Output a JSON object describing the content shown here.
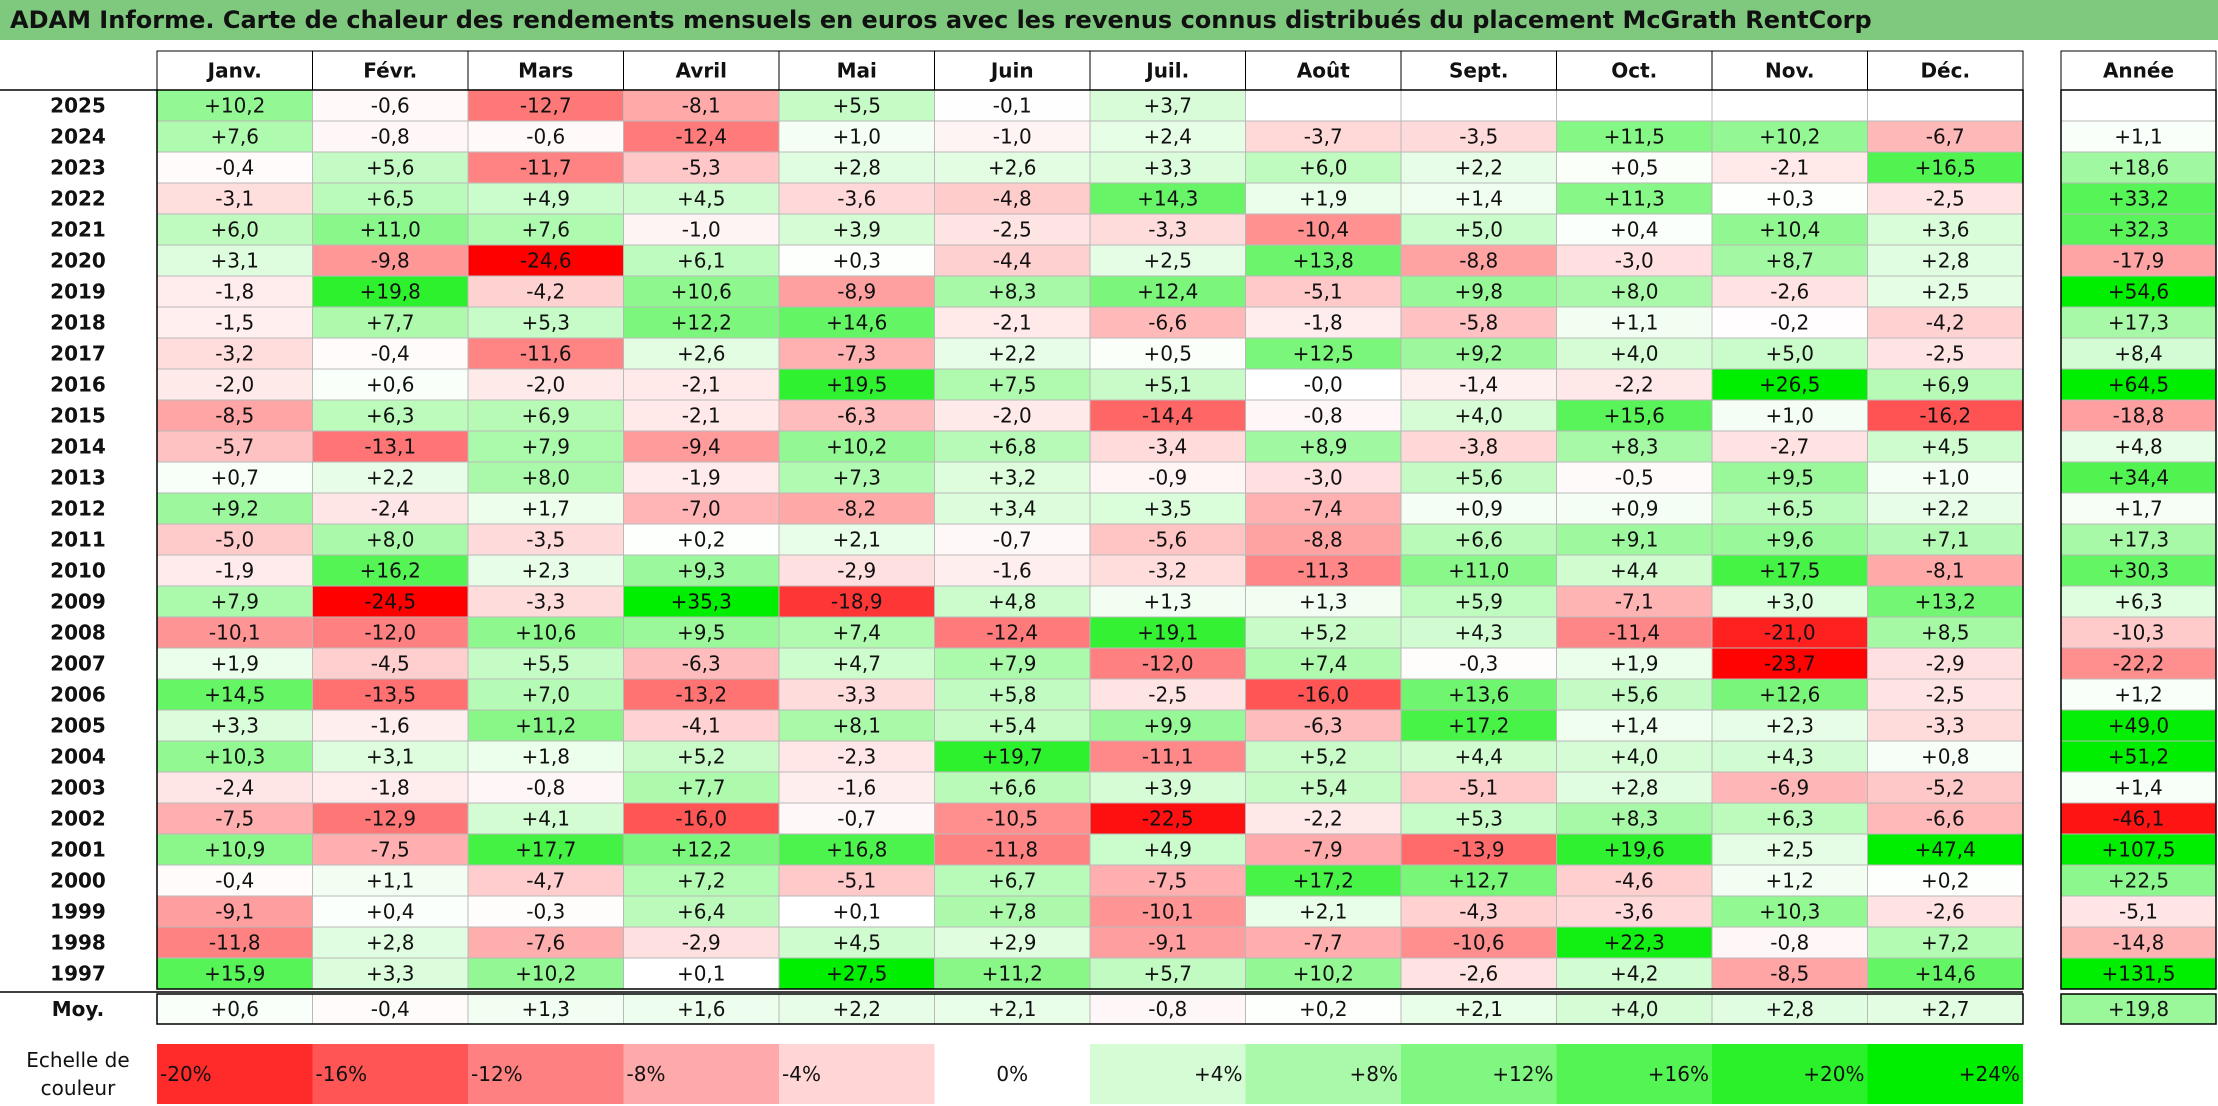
{
  "title": "ADAM Informe. Carte de chaleur des rendements mensuels en euros avec les revenus connus distribués du placement McGrath RentCorp",
  "chart_data": {
    "type": "heatmap",
    "title": "ADAM Informe. Carte de chaleur des rendements mensuels en euros avec les revenus connus distribués du placement McGrath RentCorp",
    "columns": [
      "Janv.",
      "Févr.",
      "Mars",
      "Avril",
      "Mai",
      "Juin",
      "Juil.",
      "Août",
      "Sept.",
      "Oct.",
      "Nov.",
      "Déc."
    ],
    "year_column_label": "Année",
    "rows": [
      {
        "year": "2025",
        "values": [
          "+10,2",
          "-0,6",
          "-12,7",
          "-8,1",
          "+5,5",
          "-0,1",
          "+3,7",
          "",
          "",
          "",
          "",
          ""
        ],
        "annual": ""
      },
      {
        "year": "2024",
        "values": [
          "+7,6",
          "-0,8",
          "-0,6",
          "-12,4",
          "+1,0",
          "-1,0",
          "+2,4",
          "-3,7",
          "-3,5",
          "+11,5",
          "+10,2",
          "-6,7"
        ],
        "annual": "+1,1"
      },
      {
        "year": "2023",
        "values": [
          "-0,4",
          "+5,6",
          "-11,7",
          "-5,3",
          "+2,8",
          "+2,6",
          "+3,3",
          "+6,0",
          "+2,2",
          "+0,5",
          "-2,1",
          "+16,5"
        ],
        "annual": "+18,6"
      },
      {
        "year": "2022",
        "values": [
          "-3,1",
          "+6,5",
          "+4,9",
          "+4,5",
          "-3,6",
          "-4,8",
          "+14,3",
          "+1,9",
          "+1,4",
          "+11,3",
          "+0,3",
          "-2,5"
        ],
        "annual": "+33,2"
      },
      {
        "year": "2021",
        "values": [
          "+6,0",
          "+11,0",
          "+7,6",
          "-1,0",
          "+3,9",
          "-2,5",
          "-3,3",
          "-10,4",
          "+5,0",
          "+0,4",
          "+10,4",
          "+3,6"
        ],
        "annual": "+32,3"
      },
      {
        "year": "2020",
        "values": [
          "+3,1",
          "-9,8",
          "-24,6",
          "+6,1",
          "+0,3",
          "-4,4",
          "+2,5",
          "+13,8",
          "-8,8",
          "-3,0",
          "+8,7",
          "+2,8"
        ],
        "annual": "-17,9"
      },
      {
        "year": "2019",
        "values": [
          "-1,8",
          "+19,8",
          "-4,2",
          "+10,6",
          "-8,9",
          "+8,3",
          "+12,4",
          "-5,1",
          "+9,8",
          "+8,0",
          "-2,6",
          "+2,5"
        ],
        "annual": "+54,6"
      },
      {
        "year": "2018",
        "values": [
          "-1,5",
          "+7,7",
          "+5,3",
          "+12,2",
          "+14,6",
          "-2,1",
          "-6,6",
          "-1,8",
          "-5,8",
          "+1,1",
          "-0,2",
          "-4,2"
        ],
        "annual": "+17,3"
      },
      {
        "year": "2017",
        "values": [
          "-3,2",
          "-0,4",
          "-11,6",
          "+2,6",
          "-7,3",
          "+2,2",
          "+0,5",
          "+12,5",
          "+9,2",
          "+4,0",
          "+5,0",
          "-2,5"
        ],
        "annual": "+8,4"
      },
      {
        "year": "2016",
        "values": [
          "-2,0",
          "+0,6",
          "-2,0",
          "-2,1",
          "+19,5",
          "+7,5",
          "+5,1",
          "-0,0",
          "-1,4",
          "-2,2",
          "+26,5",
          "+6,9"
        ],
        "annual": "+64,5"
      },
      {
        "year": "2015",
        "values": [
          "-8,5",
          "+6,3",
          "+6,9",
          "-2,1",
          "-6,3",
          "-2,0",
          "-14,4",
          "-0,8",
          "+4,0",
          "+15,6",
          "+1,0",
          "-16,2"
        ],
        "annual": "-18,8"
      },
      {
        "year": "2014",
        "values": [
          "-5,7",
          "-13,1",
          "+7,9",
          "-9,4",
          "+10,2",
          "+6,8",
          "-3,4",
          "+8,9",
          "-3,8",
          "+8,3",
          "-2,7",
          "+4,5"
        ],
        "annual": "+4,8"
      },
      {
        "year": "2013",
        "values": [
          "+0,7",
          "+2,2",
          "+8,0",
          "-1,9",
          "+7,3",
          "+3,2",
          "-0,9",
          "-3,0",
          "+5,6",
          "-0,5",
          "+9,5",
          "+1,0"
        ],
        "annual": "+34,4"
      },
      {
        "year": "2012",
        "values": [
          "+9,2",
          "-2,4",
          "+1,7",
          "-7,0",
          "-8,2",
          "+3,4",
          "+3,5",
          "-7,4",
          "+0,9",
          "+0,9",
          "+6,5",
          "+2,2"
        ],
        "annual": "+1,7"
      },
      {
        "year": "2011",
        "values": [
          "-5,0",
          "+8,0",
          "-3,5",
          "+0,2",
          "+2,1",
          "-0,7",
          "-5,6",
          "-8,8",
          "+6,6",
          "+9,1",
          "+9,6",
          "+7,1"
        ],
        "annual": "+17,3"
      },
      {
        "year": "2010",
        "values": [
          "-1,9",
          "+16,2",
          "+2,3",
          "+9,3",
          "-2,9",
          "-1,6",
          "-3,2",
          "-11,3",
          "+11,0",
          "+4,4",
          "+17,5",
          "-8,1"
        ],
        "annual": "+30,3"
      },
      {
        "year": "2009",
        "values": [
          "+7,9",
          "-24,5",
          "-3,3",
          "+35,3",
          "-18,9",
          "+4,8",
          "+1,3",
          "+1,3",
          "+5,9",
          "-7,1",
          "+3,0",
          "+13,2"
        ],
        "annual": "+6,3"
      },
      {
        "year": "2008",
        "values": [
          "-10,1",
          "-12,0",
          "+10,6",
          "+9,5",
          "+7,4",
          "-12,4",
          "+19,1",
          "+5,2",
          "+4,3",
          "-11,4",
          "-21,0",
          "+8,5"
        ],
        "annual": "-10,3"
      },
      {
        "year": "2007",
        "values": [
          "+1,9",
          "-4,5",
          "+5,5",
          "-6,3",
          "+4,7",
          "+7,9",
          "-12,0",
          "+7,4",
          "-0,3",
          "+1,9",
          "-23,7",
          "-2,9"
        ],
        "annual": "-22,2"
      },
      {
        "year": "2006",
        "values": [
          "+14,5",
          "-13,5",
          "+7,0",
          "-13,2",
          "-3,3",
          "+5,8",
          "-2,5",
          "-16,0",
          "+13,6",
          "+5,6",
          "+12,6",
          "-2,5"
        ],
        "annual": "+1,2"
      },
      {
        "year": "2005",
        "values": [
          "+3,3",
          "-1,6",
          "+11,2",
          "-4,1",
          "+8,1",
          "+5,4",
          "+9,9",
          "-6,3",
          "+17,2",
          "+1,4",
          "+2,3",
          "-3,3"
        ],
        "annual": "+49,0"
      },
      {
        "year": "2004",
        "values": [
          "+10,3",
          "+3,1",
          "+1,8",
          "+5,2",
          "-2,3",
          "+19,7",
          "-11,1",
          "+5,2",
          "+4,4",
          "+4,0",
          "+4,3",
          "+0,8"
        ],
        "annual": "+51,2"
      },
      {
        "year": "2003",
        "values": [
          "-2,4",
          "-1,8",
          "-0,8",
          "+7,7",
          "-1,6",
          "+6,6",
          "+3,9",
          "+5,4",
          "-5,1",
          "+2,8",
          "-6,9",
          "-5,2"
        ],
        "annual": "+1,4"
      },
      {
        "year": "2002",
        "values": [
          "-7,5",
          "-12,9",
          "+4,1",
          "-16,0",
          "-0,7",
          "-10,5",
          "-22,5",
          "-2,2",
          "+5,3",
          "+8,3",
          "+6,3",
          "-6,6"
        ],
        "annual": "-46,1"
      },
      {
        "year": "2001",
        "values": [
          "+10,9",
          "-7,5",
          "+17,7",
          "+12,2",
          "+16,8",
          "-11,8",
          "+4,9",
          "-7,9",
          "-13,9",
          "+19,6",
          "+2,5",
          "+47,4"
        ],
        "annual": "+107,5"
      },
      {
        "year": "2000",
        "values": [
          "-0,4",
          "+1,1",
          "-4,7",
          "+7,2",
          "-5,1",
          "+6,7",
          "-7,5",
          "+17,2",
          "+12,7",
          "-4,6",
          "+1,2",
          "+0,2"
        ],
        "annual": "+22,5"
      },
      {
        "year": "1999",
        "values": [
          "-9,1",
          "+0,4",
          "-0,3",
          "+6,4",
          "+0,1",
          "+7,8",
          "-10,1",
          "+2,1",
          "-4,3",
          "-3,6",
          "+10,3",
          "-2,6"
        ],
        "annual": "-5,1"
      },
      {
        "year": "1998",
        "values": [
          "-11,8",
          "+2,8",
          "-7,6",
          "-2,9",
          "+4,5",
          "+2,9",
          "-9,1",
          "-7,7",
          "-10,6",
          "+22,3",
          "-0,8",
          "+7,2"
        ],
        "annual": "-14,8"
      },
      {
        "year": "1997",
        "values": [
          "+15,9",
          "+3,3",
          "+10,2",
          "+0,1",
          "+27,5",
          "+11,2",
          "+5,7",
          "+10,2",
          "-2,6",
          "+4,2",
          "-8,5",
          "+14,6"
        ],
        "annual": "+131,5"
      }
    ],
    "average": {
      "label": "Moy.",
      "values": [
        "+0,6",
        "-0,4",
        "+1,3",
        "+1,6",
        "+2,2",
        "+2,1",
        "-0,8",
        "+0,2",
        "+2,1",
        "+4,0",
        "+2,8",
        "+2,7"
      ],
      "annual": "+19,8"
    },
    "color_scale": {
      "label": "Echelle de couleur",
      "stops": [
        "-20%",
        "-16%",
        "-12%",
        "-8%",
        "-4%",
        "0%",
        "+4%",
        "+8%",
        "+12%",
        "+16%",
        "+20%",
        "+24%"
      ],
      "negative_color": "#ff0000",
      "neutral_color": "#ffffff",
      "positive_color": "#00ee00",
      "monthly_saturation": 24,
      "annual_saturation": 50
    },
    "title_bar_color": "#7fc97f"
  }
}
